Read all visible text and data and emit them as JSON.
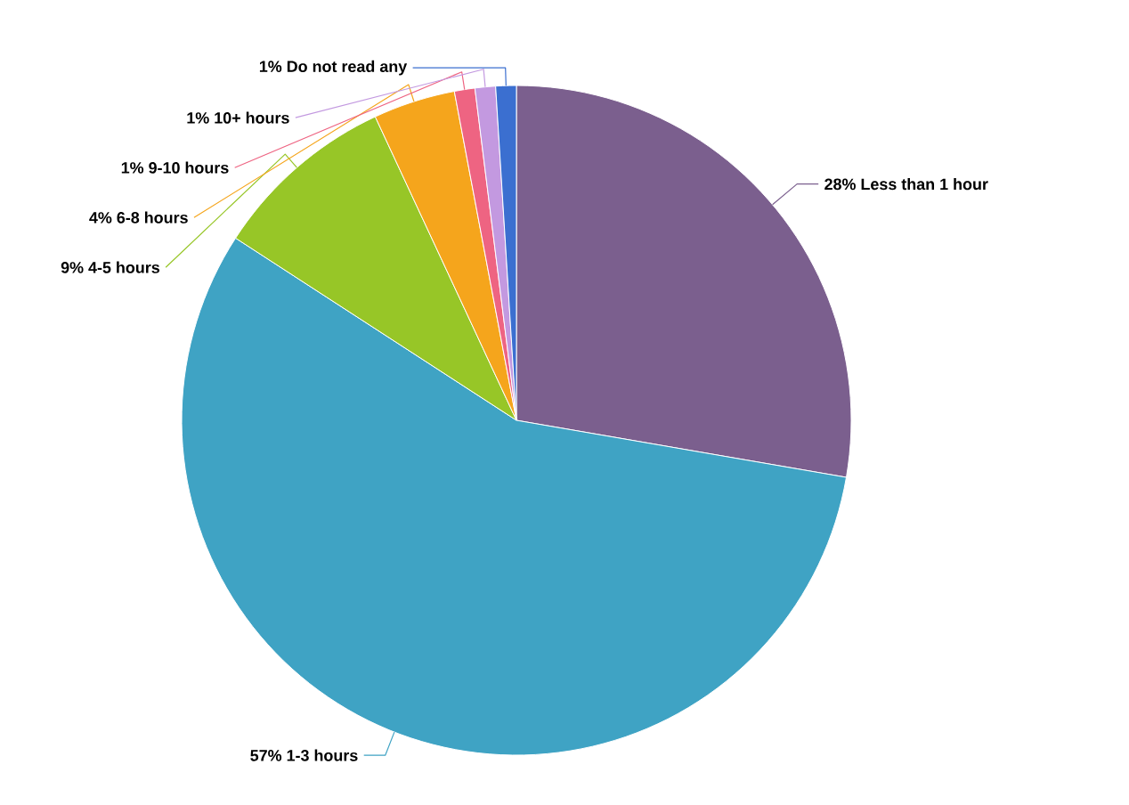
{
  "chart_data": {
    "type": "pie",
    "categories": [
      "Less than 1 hour",
      "1-3 hours",
      "4-5 hours",
      "6-8 hours",
      "9-10 hours",
      "10+ hours",
      "Do not read any"
    ],
    "values": [
      28,
      57,
      9,
      4,
      1,
      1,
      1
    ],
    "value_labels": [
      "28%",
      "57%",
      "9%",
      "4%",
      "1%",
      "1%",
      "1%"
    ],
    "colors": [
      "#7b5f8e",
      "#3fa3c4",
      "#97c627",
      "#f5a51c",
      "#ee6482",
      "#c399e0",
      "#3b6fd0"
    ]
  }
}
